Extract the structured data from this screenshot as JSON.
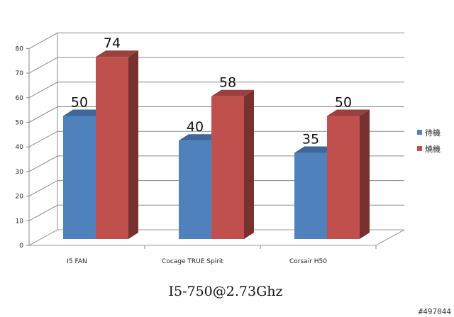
{
  "chart_data": {
    "type": "bar",
    "title": "I5-750@2.73Ghz",
    "categories": [
      "I5 FAN",
      "Cocage TRUE Spirit",
      "Corsair H50"
    ],
    "series": [
      {
        "name": "待機",
        "values": [
          50,
          40,
          35
        ],
        "color": "#4f81bd"
      },
      {
        "name": "燒機",
        "values": [
          74,
          58,
          50
        ],
        "color": "#c0504d"
      }
    ],
    "ylim": [
      0,
      80
    ],
    "yticks": [
      0,
      10,
      20,
      30,
      40,
      50,
      60,
      70,
      80
    ],
    "grid": true,
    "legend": "right",
    "data_labels": true,
    "style": "3d-clustered-column"
  },
  "watermark": "#497044"
}
